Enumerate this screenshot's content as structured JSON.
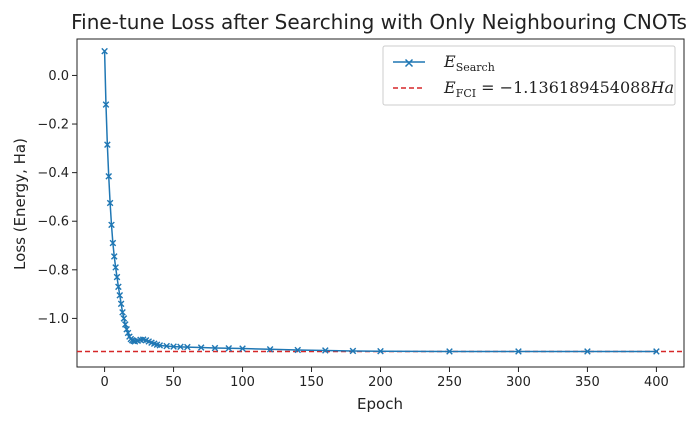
{
  "chart_data": {
    "type": "line",
    "title": "Fine-tune Loss after Searching with Only Neighbouring CNOTs",
    "xlabel": "Epoch",
    "ylabel": "Loss (Energy, Ha)",
    "xlim": [
      -20,
      420
    ],
    "ylim": [
      -1.2,
      0.15
    ],
    "xticks": [
      0,
      50,
      100,
      150,
      200,
      250,
      300,
      350,
      400
    ],
    "yticks": [
      -1.0,
      -0.8,
      -0.6,
      -0.4,
      -0.2,
      0.0
    ],
    "xtick_labels": [
      "0",
      "50",
      "100",
      "150",
      "200",
      "250",
      "300",
      "350",
      "400"
    ],
    "ytick_labels": [
      "−1.0",
      "−0.8",
      "−0.6",
      "−0.4",
      "−0.2",
      "0.0"
    ],
    "grid": false,
    "legend": "top-right",
    "series": [
      {
        "name_main": "E",
        "name_sub": "Search",
        "color": "#1f77b4",
        "marker": "x",
        "x": [
          0,
          1,
          2,
          3,
          4,
          5,
          6,
          7,
          8,
          9,
          10,
          11,
          12,
          13,
          14,
          15,
          16,
          17,
          18,
          19,
          20,
          21,
          22,
          24,
          26,
          28,
          30,
          32,
          34,
          36,
          38,
          40,
          45,
          50,
          55,
          60,
          70,
          80,
          90,
          100,
          120,
          140,
          160,
          180,
          200,
          250,
          300,
          350,
          400
        ],
        "y": [
          0.1,
          -0.12,
          -0.285,
          -0.415,
          -0.525,
          -0.615,
          -0.69,
          -0.745,
          -0.79,
          -0.83,
          -0.87,
          -0.905,
          -0.94,
          -0.975,
          -1.0,
          -1.025,
          -1.045,
          -1.06,
          -1.075,
          -1.085,
          -1.09,
          -1.093,
          -1.095,
          -1.092,
          -1.088,
          -1.087,
          -1.09,
          -1.095,
          -1.1,
          -1.104,
          -1.108,
          -1.111,
          -1.114,
          -1.116,
          -1.117,
          -1.118,
          -1.12,
          -1.122,
          -1.123,
          -1.124,
          -1.127,
          -1.13,
          -1.132,
          -1.134,
          -1.135,
          -1.136,
          -1.136,
          -1.136,
          -1.136
        ]
      }
    ],
    "reference_line": {
      "name_main": "E",
      "name_sub": "FCI",
      "name_tail": " = −1.136189454088",
      "name_unit": "Ha",
      "y": -1.136189454088,
      "color": "#d62728",
      "style": "dashed"
    }
  }
}
